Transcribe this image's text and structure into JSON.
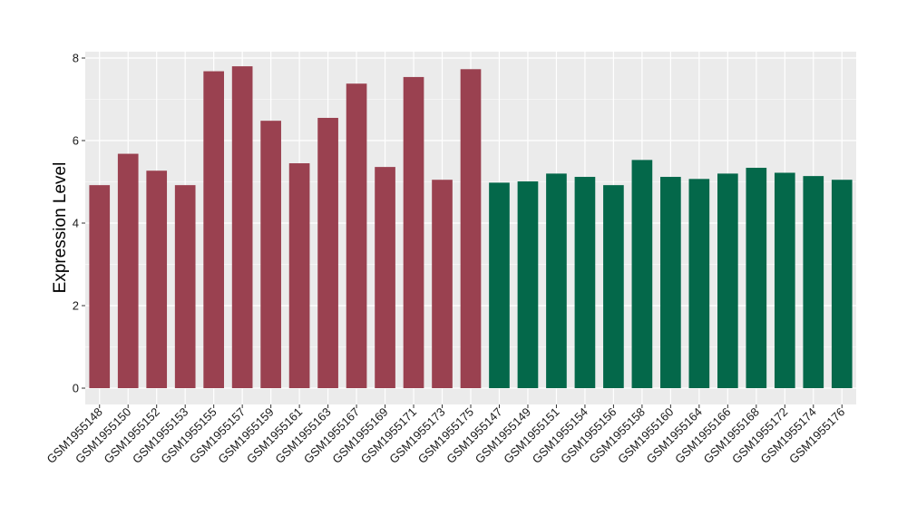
{
  "chart_data": {
    "type": "bar",
    "title": "",
    "xlabel": "",
    "ylabel": "Expression Level",
    "ylim": [
      0,
      8.2
    ],
    "yticks": [
      0,
      2,
      4,
      6,
      8
    ],
    "grid": true,
    "legend": "none",
    "colors": {
      "group_a": "#9a4150",
      "group_b": "#04684a",
      "panel_bg": "#ebebeb",
      "grid": "#ffffff"
    },
    "categories": [
      "GSM1955148",
      "GSM1955150",
      "GSM1955152",
      "GSM1955153",
      "GSM1955155",
      "GSM1955157",
      "GSM1955159",
      "GSM1955161",
      "GSM1955163",
      "GSM1955167",
      "GSM1955169",
      "GSM1955171",
      "GSM1955173",
      "GSM1955175",
      "GSM1955147",
      "GSM1955149",
      "GSM1955151",
      "GSM1955154",
      "GSM1955156",
      "GSM1955158",
      "GSM1955160",
      "GSM1955164",
      "GSM1955166",
      "GSM1955168",
      "GSM1955172",
      "GSM1955174",
      "GSM1955176"
    ],
    "values": [
      4.92,
      5.68,
      5.27,
      4.92,
      7.68,
      7.8,
      6.48,
      5.45,
      6.55,
      7.38,
      5.36,
      7.54,
      5.05,
      7.73,
      4.98,
      5.01,
      5.2,
      5.12,
      4.92,
      5.53,
      5.12,
      5.07,
      5.2,
      5.34,
      5.22,
      5.14,
      5.05
    ],
    "groups": [
      "a",
      "a",
      "a",
      "a",
      "a",
      "a",
      "a",
      "a",
      "a",
      "a",
      "a",
      "a",
      "a",
      "a",
      "b",
      "b",
      "b",
      "b",
      "b",
      "b",
      "b",
      "b",
      "b",
      "b",
      "b",
      "b",
      "b"
    ]
  }
}
